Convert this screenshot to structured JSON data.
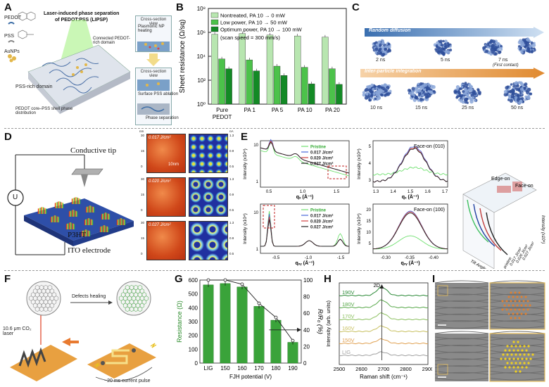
{
  "panels": [
    "A",
    "B",
    "C",
    "D",
    "E",
    "F",
    "G",
    "H",
    "I"
  ],
  "panelA": {
    "legend": [
      "PEDOT",
      "PSS",
      "AuNPs"
    ],
    "title_line1": "Laser-induced phase separation",
    "title_line2": "of PEDOT:PSS (LIPSP)",
    "connected": "Connected PEDOT-rich domain",
    "pss_rich": "PSS-rich domain",
    "core_shell": "PEDOT core–PSS shell phase distribution",
    "cross1": "Cross-section view",
    "plasmonic": "Plasmonic NP heating",
    "cross2": "Cross-section view",
    "ablation": "Surface PSS ablation",
    "phase_sep": "Phase separation"
  },
  "panelB": {
    "ylabel": "Sheet resistance (Ω/sq)",
    "legend": [
      "Nontreated, PA 10 → 0 mW",
      "Low power, PA 10 → 50 mW",
      "Optimum power, PA 10 → 100 mW"
    ],
    "note": "(scan speed = 300 mm/s)",
    "yticks": [
      "10⁰",
      "10²",
      "10⁴",
      "10⁶",
      "10⁸"
    ],
    "xticks": [
      "Pure PEDOT",
      "PA 1",
      "PA 5",
      "PA 10",
      "PA 20"
    ]
  },
  "panelC": {
    "random": "Random diffusion",
    "inter": "Inter-particle integration",
    "times_top": [
      "2 ns",
      "5 ns",
      "7 ns"
    ],
    "first_contact": "(First contact)",
    "times_bottom": [
      "10 ns",
      "15 ns",
      "25 ns",
      "50 ns"
    ]
  },
  "panelD": {
    "tip": "Conductive tip",
    "u": "U",
    "p3ht": "P3HT",
    "ito": "ITO electrode",
    "fluences": [
      "0.017 J/cm²",
      "0.020 J/cm²",
      "0.027 J/cm²"
    ],
    "scale": "10nm",
    "unit_left": "nm",
    "unit_right": "nA",
    "tick_left": [
      "30",
      "15",
      "0"
    ],
    "tick_right": [
      "1.3",
      "0.9",
      "0.5"
    ]
  },
  "panelE": {
    "legend": [
      "Pristine",
      "0.017 J/cm²",
      "0.020 J/cm²",
      "0.027 J/cm²"
    ],
    "ylabel": "Intensity (x10⁴)",
    "xlabel_top": "qₓ (Å⁻¹)",
    "xlabel_bot": "qₓᵧ (Å⁻¹)",
    "faceon010": "Face-on (010)",
    "faceon100": "Face-on (100)",
    "edgeon": "Edge-on",
    "faceon": "Face-on",
    "tilt": "Tilt Angle (β)",
    "zlabel": "Intensity (x10⁴)",
    "pristine": "pristine",
    "top_left_ticks_y": [
      "10",
      "1"
    ],
    "top_left_ticks_x": [
      "0.5",
      "1.0",
      "1.5"
    ],
    "top_right_ticks_x": [
      "1.3",
      "1.4",
      "1.5",
      "1.6",
      "1.7"
    ],
    "top_right_ticks_y": [
      "5",
      "4",
      "3"
    ],
    "bot_left_ticks_x": [
      "-0.5",
      "-1.0",
      "-1.5"
    ],
    "bot_right_ticks_x": [
      "-0.30",
      "-0.35",
      "-0.40"
    ],
    "bot_right_ticks_y": [
      "20",
      "15",
      "10",
      "5"
    ]
  },
  "panelF": {
    "laser": "10.6 μm CO₂ laser",
    "defects": "Defects healing",
    "pulse": "~20 ms current pulse"
  },
  "panelG": {
    "ylabel_left": "Resistance (Ω)",
    "ylabel_right": "R/R₀ (%)",
    "xlabel": "FJH potential (V)",
    "categories": [
      "LIG",
      "150",
      "160",
      "170",
      "180",
      "190"
    ],
    "yticks_left": [
      "0",
      "100",
      "200",
      "300",
      "400",
      "500",
      "600"
    ],
    "yticks_right": [
      "0",
      "20",
      "40",
      "60",
      "80",
      "100"
    ]
  },
  "panelH": {
    "ylabel": "Intensity (arb. units)",
    "xlabel": "Raman shift (cm⁻¹)",
    "peak": "2D",
    "labels": [
      "190V",
      "180V",
      "170V",
      "160V",
      "150V",
      "LIG"
    ],
    "xticks": [
      "2500",
      "2600",
      "2700",
      "2800",
      "2900"
    ]
  },
  "chart_data": [
    {
      "type": "bar",
      "ylabel": "Sheet resistance (Ω/sq)",
      "yscale": "log",
      "ylim": [
        1,
        100000000
      ],
      "categories": [
        "Pure PEDOT",
        "PA 1",
        "PA 5",
        "PA 10",
        "PA 20"
      ],
      "series": [
        {
          "name": "Nontreated, PA 10 → 0 mW",
          "values": [
            700000,
            800000,
            600000,
            500000,
            400000
          ],
          "color": "#b8e6b0"
        },
        {
          "name": "Low power, PA 10 → 50 mW",
          "values": [
            6000,
            5000,
            1500,
            1200,
            900
          ],
          "color": "#4cc24a"
        },
        {
          "name": "Optimum power, PA 10 → 100 mW",
          "values": [
            900,
            600,
            250,
            50,
            45
          ],
          "color": "#138a25"
        }
      ]
    },
    {
      "type": "bar",
      "xlabel": "FJH potential (V)",
      "ylabel": "Resistance (Ω)",
      "ylim": [
        0,
        600
      ],
      "categories": [
        "LIG",
        "150",
        "160",
        "170",
        "180",
        "190"
      ],
      "values": [
        565,
        575,
        550,
        410,
        310,
        150
      ],
      "secondary_series": {
        "name": "R/R₀ (%)",
        "ylim": [
          0,
          100
        ],
        "values": [
          100,
          100,
          95,
          72,
          55,
          27
        ]
      }
    },
    {
      "type": "line",
      "xlabel": "Raman shift (cm⁻¹)",
      "ylabel": "Intensity (arb. units)",
      "xlim": [
        2500,
        2900
      ],
      "series": [
        {
          "name": "190V",
          "color": "#2e8b3a"
        },
        {
          "name": "180V",
          "color": "#58a84a"
        },
        {
          "name": "170V",
          "color": "#8cc060"
        },
        {
          "name": "160V",
          "color": "#c8c060"
        },
        {
          "name": "150V",
          "color": "#e0a050"
        },
        {
          "name": "LIG",
          "color": "#a0a0a0"
        }
      ]
    }
  ],
  "colors": {
    "green_light": "#b8e6b0",
    "green_mid": "#4cc24a",
    "green_dark": "#138a25",
    "arrow_blue": "#3a6fb0",
    "arrow_orange": "#e08a30"
  }
}
